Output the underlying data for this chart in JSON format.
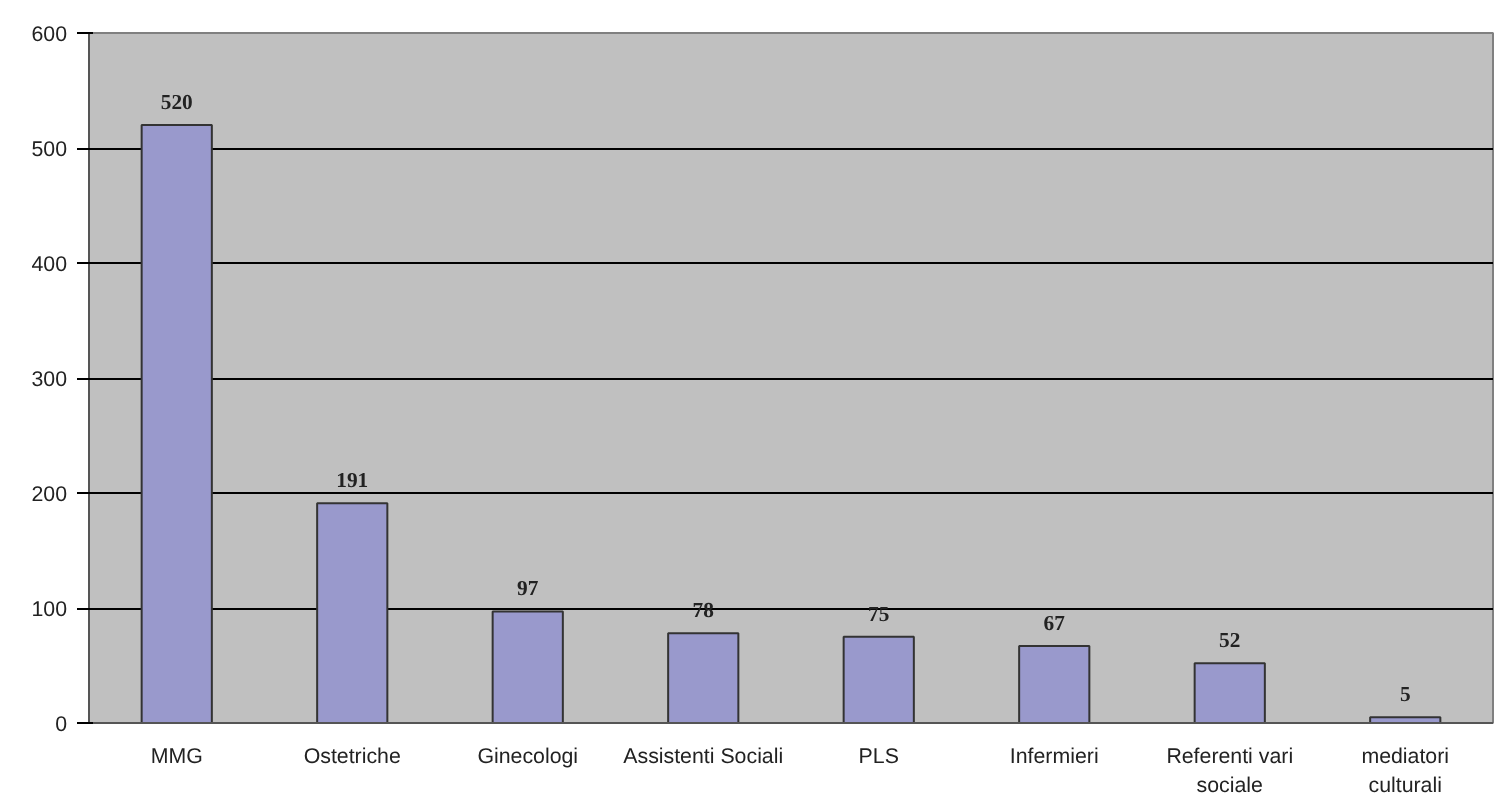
{
  "chart_data": {
    "type": "bar",
    "categories": [
      "MMG",
      "Ostetriche",
      "Ginecologi",
      "Assistenti Sociali",
      "PLS",
      "Infermieri",
      "Referenti vari sociale",
      "mediatori culturali"
    ],
    "values": [
      520,
      191,
      97,
      78,
      75,
      67,
      52,
      5
    ],
    "color": "#9999cc",
    "ylim": [
      0,
      600
    ],
    "yticks": [
      0,
      100,
      200,
      300,
      400,
      500,
      600
    ],
    "grid": "y",
    "data_labels": true
  }
}
